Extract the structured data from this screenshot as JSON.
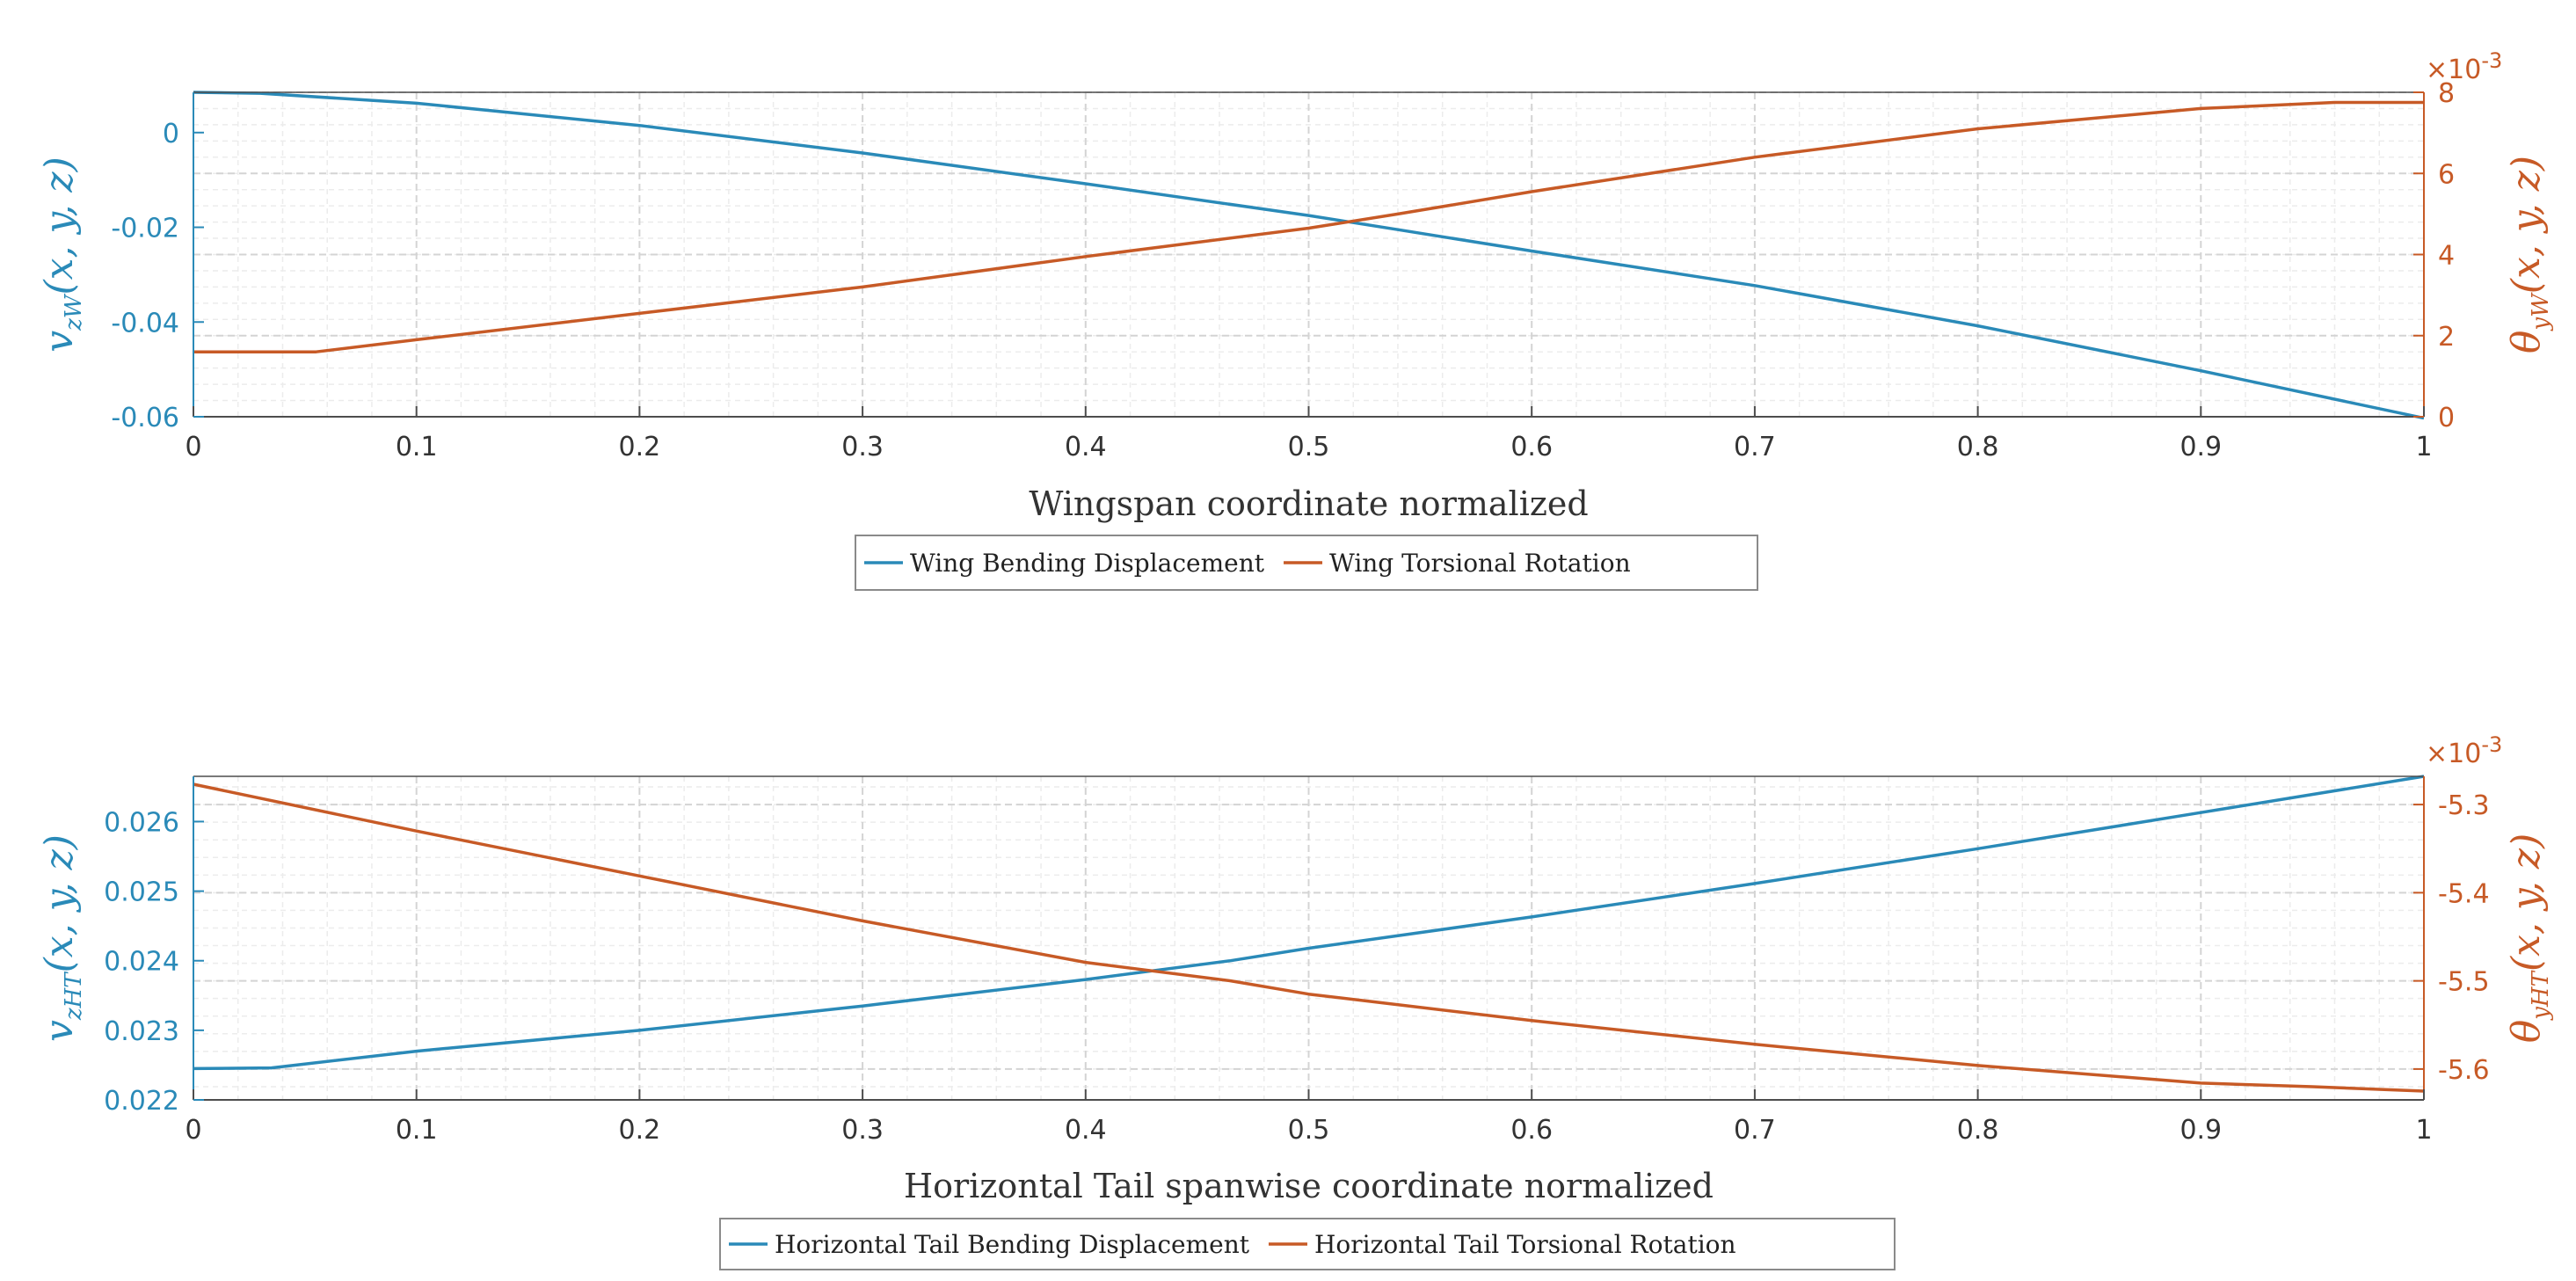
{
  "colors": {
    "blue": "#2a8ab8",
    "orange": "#c75a26",
    "axis": "#4d4d4d",
    "text": "#333333",
    "grid_major": "#d4d4d4",
    "grid_minor": "#ececec"
  },
  "chart_data": [
    {
      "type": "line",
      "xlabel": "Wingspan coordinate normalized",
      "xlim": [
        0,
        1
      ],
      "xticks": [
        0,
        0.1,
        0.2,
        0.3,
        0.4,
        0.5,
        0.6,
        0.7,
        0.8,
        0.9,
        1
      ],
      "xtick_labels": [
        "0",
        "0.1",
        "0.2",
        "0.3",
        "0.4",
        "0.5",
        "0.6",
        "0.7",
        "0.8",
        "0.9",
        "1"
      ],
      "grid": true,
      "legend_position": "bottom-center",
      "left_axis": {
        "label_main": "v",
        "label_sub": "zW",
        "label_args": "(x, y, z)",
        "ylim": [
          -0.06,
          0.0085
        ],
        "ticks": [
          0,
          -0.02,
          -0.04,
          -0.06
        ],
        "tick_labels": [
          "0",
          "-0.02",
          "-0.04",
          "-0.06"
        ]
      },
      "right_axis": {
        "label_main": "θ",
        "label_sub": "yW",
        "label_args": "(x, y, z)",
        "exponent_label": "×10",
        "exponent_power": "-3",
        "ylim": [
          0,
          8
        ],
        "ticks": [
          0,
          2,
          4,
          6,
          8
        ],
        "tick_labels": [
          "0",
          "2",
          "4",
          "6",
          "8"
        ]
      },
      "series": [
        {
          "name": "Wing Bending Displacement",
          "axis": "left",
          "color": "#2a8ab8",
          "x": [
            0,
            0.03,
            0.1,
            0.2,
            0.3,
            0.4,
            0.5,
            0.54,
            0.6,
            0.7,
            0.8,
            0.9,
            1.0
          ],
          "values": [
            0.0085,
            0.0083,
            0.0062,
            0.0015,
            -0.0043,
            -0.0108,
            -0.0175,
            -0.0205,
            -0.025,
            -0.0323,
            -0.0408,
            -0.0503,
            -0.0603
          ]
        },
        {
          "name": "Wing Torsional Rotation",
          "axis": "right",
          "color": "#c75a26",
          "x": [
            0,
            0.055,
            0.1,
            0.2,
            0.3,
            0.4,
            0.5,
            0.54,
            0.6,
            0.7,
            0.8,
            0.9,
            0.96,
            1.0
          ],
          "values": [
            1.6,
            1.6,
            1.9,
            2.55,
            3.2,
            3.95,
            4.65,
            5.0,
            5.55,
            6.4,
            7.1,
            7.6,
            7.75,
            7.75
          ]
        }
      ]
    },
    {
      "type": "line",
      "xlabel": "Horizontal Tail spanwise coordinate normalized",
      "xlim": [
        0,
        1
      ],
      "xticks": [
        0,
        0.1,
        0.2,
        0.3,
        0.4,
        0.5,
        0.6,
        0.7,
        0.8,
        0.9,
        1
      ],
      "xtick_labels": [
        "0",
        "0.1",
        "0.2",
        "0.3",
        "0.4",
        "0.5",
        "0.6",
        "0.7",
        "0.8",
        "0.9",
        "1"
      ],
      "grid": true,
      "legend_position": "bottom-center",
      "left_axis": {
        "label_main": "v",
        "label_sub": "zHT",
        "label_args": "(x, y, z)",
        "ylim": [
          0.022,
          0.02665
        ],
        "ticks": [
          0.022,
          0.023,
          0.024,
          0.025,
          0.026
        ],
        "tick_labels": [
          "0.022",
          "0.023",
          "0.024",
          "0.025",
          "0.026"
        ]
      },
      "right_axis": {
        "label_main": "θ",
        "label_sub": "yHT",
        "label_args": "(x, y, z)",
        "exponent_label": "×10",
        "exponent_power": "-3",
        "ylim": [
          -5.635,
          -5.268
        ],
        "ticks": [
          -5.3,
          -5.4,
          -5.5,
          -5.6
        ],
        "tick_labels": [
          "-5.3",
          "-5.4",
          "-5.5",
          "-5.6"
        ]
      },
      "series": [
        {
          "name": "Horizontal Tail Bending Displacement",
          "axis": "left",
          "color": "#2a8ab8",
          "x": [
            0,
            0.035,
            0.1,
            0.2,
            0.3,
            0.4,
            0.465,
            0.5,
            0.6,
            0.7,
            0.8,
            0.9,
            1.0
          ],
          "values": [
            0.02245,
            0.02246,
            0.0227,
            0.023,
            0.02335,
            0.02373,
            0.024,
            0.02418,
            0.02463,
            0.02511,
            0.02561,
            0.02613,
            0.02665
          ]
        },
        {
          "name": "Horizontal Tail Torsional Rotation",
          "axis": "right",
          "color": "#c75a26",
          "x": [
            0,
            0.1,
            0.2,
            0.3,
            0.4,
            0.465,
            0.5,
            0.6,
            0.7,
            0.8,
            0.9,
            0.95,
            1.0
          ],
          "values": [
            -5.277,
            -5.33,
            -5.381,
            -5.432,
            -5.479,
            -5.5,
            -5.515,
            -5.545,
            -5.572,
            -5.596,
            -5.616,
            -5.62,
            -5.625
          ]
        }
      ]
    }
  ]
}
